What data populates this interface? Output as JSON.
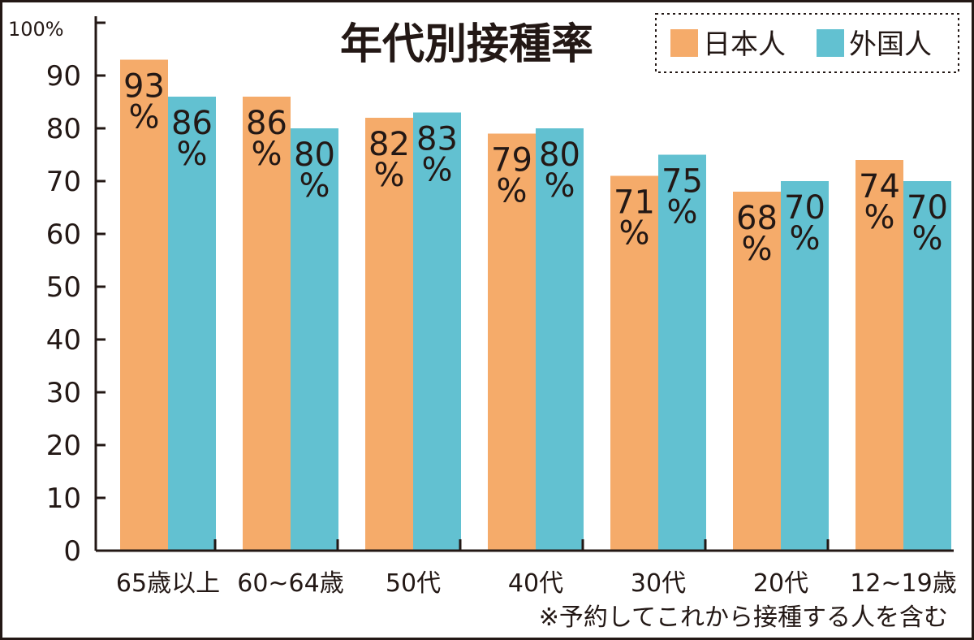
{
  "chart_data": {
    "type": "bar",
    "title": "年代別接種率",
    "y_axis_top_label": "100%",
    "ylim": [
      0,
      100
    ],
    "yticks": [
      0,
      10,
      20,
      30,
      40,
      50,
      60,
      70,
      80,
      90
    ],
    "categories": [
      "65歳以上",
      "60~64歳",
      "50代",
      "40代",
      "30代",
      "20代",
      "12~19歳"
    ],
    "series": [
      {
        "name": "日本人",
        "color": "#f5ab6a",
        "values": [
          93,
          86,
          82,
          79,
          71,
          68,
          74
        ]
      },
      {
        "name": "外国人",
        "color": "#62c1d1",
        "values": [
          86,
          80,
          83,
          80,
          75,
          70,
          70
        ]
      }
    ],
    "value_unit": "%",
    "grid": false,
    "legend_position": "top-right",
    "legend_border_style": "dotted",
    "note": "※予約してこれから接種する人を含む"
  }
}
